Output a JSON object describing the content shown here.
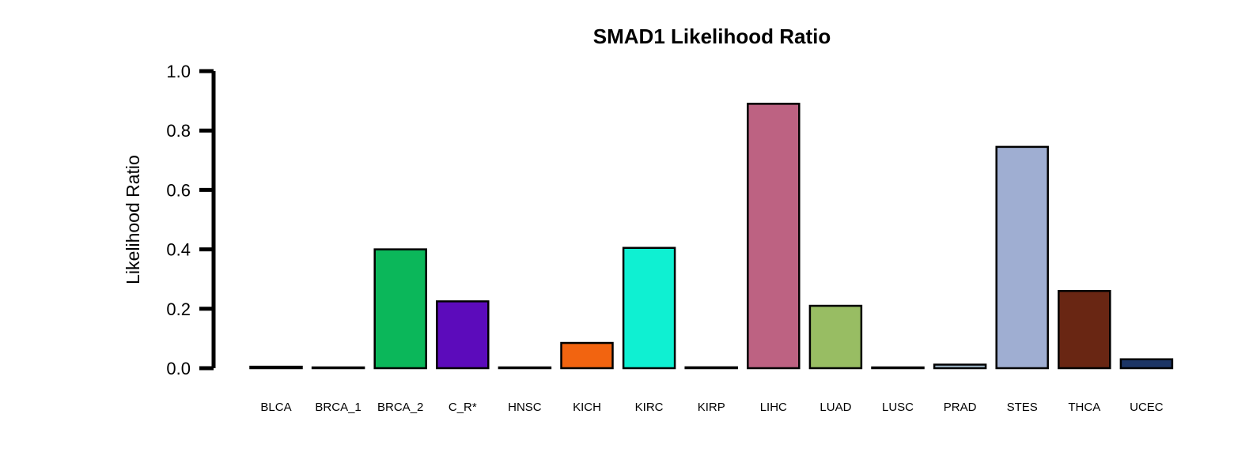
{
  "chart_data": {
    "type": "bar",
    "title": "SMAD1 Likelihood Ratio",
    "ylabel": "Likelihood Ratio",
    "ylim": [
      0,
      1.0
    ],
    "yticks": [
      "0.0",
      "0.2",
      "0.4",
      "0.6",
      "0.8",
      "1.0"
    ],
    "categories": [
      "BLCA",
      "BRCA_1",
      "BRCA_2",
      "C_R*",
      "HNSC",
      "KICH",
      "KIRC",
      "KIRP",
      "LIHC",
      "LUAD",
      "LUSC",
      "PRAD",
      "STES",
      "THCA",
      "UCEC"
    ],
    "values": [
      0.005,
      0.001,
      0.4,
      0.225,
      0.001,
      0.085,
      0.405,
      0.003,
      0.89,
      0.21,
      0.001,
      0.012,
      0.745,
      0.26,
      0.03
    ],
    "colors": [
      "#000000",
      "#000000",
      "#0bb75a",
      "#5c0bbb",
      "#000000",
      "#f26410",
      "#0ff0d2",
      "#000000",
      "#bd6282",
      "#98bd63",
      "#000000",
      "#a1b9cb",
      "#9faed2",
      "#692613",
      "#1c3565"
    ],
    "grid": false
  }
}
